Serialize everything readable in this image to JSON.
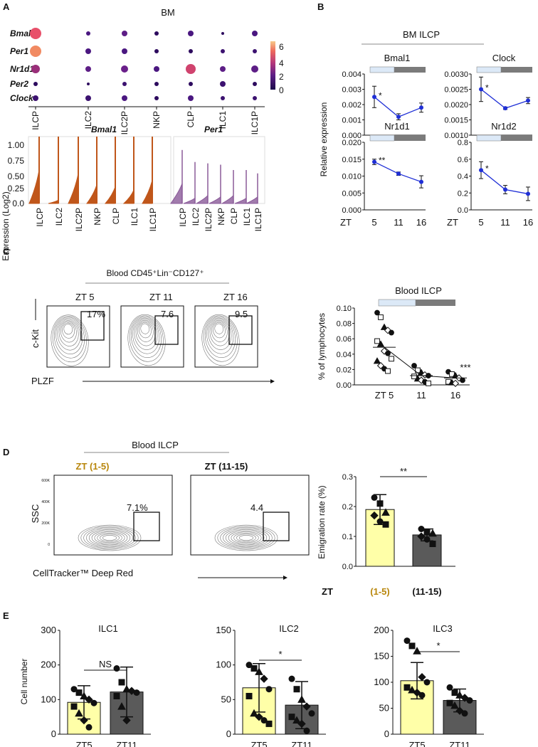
{
  "panel_labels": [
    "A",
    "B",
    "C",
    "D",
    "E"
  ],
  "panelA": {
    "dot_title": "BM",
    "genes": [
      "Bmal1",
      "Per1",
      "Nr1d1",
      "Per2",
      "Clock"
    ],
    "cells": [
      "ILCP",
      "ILC2",
      "ILC2P",
      "NKP",
      "CLP",
      "ILC1",
      "ILC1P"
    ],
    "colorbar_ticks": [
      "6",
      "4",
      "2",
      "0"
    ],
    "violin_ylabel": "Expression (Log2)",
    "violin_titles": [
      "Bmal1",
      "Per1"
    ],
    "violin_yticks": [
      "1.00",
      "0.75",
      "0.50",
      "0.25",
      "0.0"
    ],
    "colors": {
      "bmal1": "#c0561a",
      "per1": "#8a5a99"
    }
  },
  "panelB": {
    "header": "BM ILCP",
    "ylabel": "Relative expression",
    "x_prefix": "ZT",
    "x_ticks": [
      "5",
      "11",
      "16"
    ],
    "subplots": [
      {
        "title": "Bmal1",
        "yticks": [
          "0.004",
          "0.003",
          "0.002",
          "0.001",
          "0.000"
        ],
        "sig": "*"
      },
      {
        "title": "Clock",
        "yticks": [
          "0.0030",
          "0.0025",
          "0.0020",
          "0.0015",
          "0.0010"
        ],
        "sig": "*"
      },
      {
        "title": "Nr1d1",
        "yticks": [
          "0.020",
          "0.015",
          "0.010",
          "0.005",
          "0.000"
        ],
        "sig": "**"
      },
      {
        "title": "Nr1d2",
        "yticks": [
          "0.8",
          "0.6",
          "0.4",
          "0.2",
          "0.0"
        ],
        "sig": "*"
      }
    ],
    "line_color": "#1f2fd6"
  },
  "panelC": {
    "header": "Blood CD45⁺Lin⁻CD127⁺",
    "flow_titles": [
      "ZT 5",
      "ZT 11",
      "ZT 16"
    ],
    "gate_values": [
      "17%",
      "7.6",
      "9.5"
    ],
    "y_axis": "c-Kit",
    "x_axis": "PLZF",
    "scatter_title": "Blood ILCP",
    "scatter_ylabel": "% of lymphocytes",
    "scatter_yticks": [
      "0.10",
      "0.08",
      "0.06",
      "0.04",
      "0.02",
      "0.00"
    ],
    "scatter_xticks": [
      "ZT 5",
      "11",
      "16"
    ],
    "scatter_sig": "***"
  },
  "panelD": {
    "header": "Blood ILCP",
    "flow_titles": [
      "ZT (1-5)",
      "ZT (11-15)"
    ],
    "gate_values": [
      "7.1%",
      "4.4"
    ],
    "y_axis": "SSC",
    "x_axis": "CellTracker™ Deep Red",
    "flow_yticks": [
      "600K",
      "400K",
      "200K",
      "0"
    ],
    "bar_ylabel": "Emigration rate (%)",
    "bar_yticks": [
      "0.3",
      "0.2",
      "0.1",
      "0.0"
    ],
    "bar_x_prefix": "ZT",
    "bar_xticks": [
      "(1-5)",
      "(11-15)"
    ],
    "bar_sig": "**",
    "colors": {
      "early": "#b8860b",
      "bar1": "#ffffa8",
      "bar2": "#5a5a5a"
    }
  },
  "panelE": {
    "ylabel": "Cell number",
    "plots": [
      {
        "title": "ILC1",
        "yticks": [
          "300",
          "200",
          "100",
          "0"
        ],
        "sig": "NS"
      },
      {
        "title": "ILC2",
        "yticks": [
          "150",
          "100",
          "50",
          "0"
        ],
        "sig": "*"
      },
      {
        "title": "ILC3",
        "yticks": [
          "200",
          "150",
          "100",
          "50",
          "0"
        ],
        "sig": "*"
      }
    ],
    "xticks": [
      "ZT5",
      "ZT11"
    ]
  },
  "chart_data": [
    {
      "type": "line",
      "title": "Bmal1",
      "xlabel": "ZT",
      "ylabel": "Relative expression",
      "x": [
        5,
        11,
        16
      ],
      "ylim": [
        0,
        0.004
      ],
      "series": [
        {
          "values": [
            0.0025,
            0.0012,
            0.0018
          ],
          "error": [
            0.0007,
            0.0002,
            0.0003
          ]
        }
      ]
    },
    {
      "type": "line",
      "title": "Clock",
      "xlabel": "ZT",
      "ylabel": "",
      "x": [
        5,
        11,
        16
      ],
      "ylim": [
        0.001,
        0.003
      ],
      "series": [
        {
          "values": [
            0.0025,
            0.00188,
            0.00213
          ],
          "error": [
            0.0004,
            4e-05,
            0.0001
          ]
        }
      ]
    },
    {
      "type": "line",
      "title": "Nr1d1",
      "xlabel": "ZT",
      "ylabel": "Relative expression",
      "x": [
        5,
        11,
        16
      ],
      "ylim": [
        0,
        0.02
      ],
      "series": [
        {
          "values": [
            0.0142,
            0.0107,
            0.0083
          ],
          "error": [
            0.0008,
            0.0005,
            0.0018
          ]
        }
      ]
    },
    {
      "type": "line",
      "title": "Nr1d2",
      "xlabel": "ZT",
      "ylabel": "",
      "x": [
        5,
        11,
        16
      ],
      "ylim": [
        0,
        0.8
      ],
      "series": [
        {
          "values": [
            0.47,
            0.24,
            0.19
          ],
          "error": [
            0.1,
            0.05,
            0.08
          ]
        }
      ]
    },
    {
      "type": "scatter",
      "title": "Blood ILCP",
      "ylabel": "% of lymphocytes",
      "ylim": [
        0,
        0.1
      ],
      "categories": [
        "ZT 5",
        "11",
        "16"
      ],
      "means": [
        0.049,
        0.012,
        0.009
      ],
      "series": [
        {
          "x": "ZT 5",
          "values": [
            0.094,
            0.088,
            0.075,
            0.071,
            0.068,
            0.057,
            0.053,
            0.044,
            0.041,
            0.034,
            0.031,
            0.025,
            0.021,
            0.018
          ]
        },
        {
          "x": "11",
          "values": [
            0.025,
            0.019,
            0.016,
            0.013,
            0.012,
            0.011,
            0.008,
            0.006,
            0.004,
            0.002
          ]
        },
        {
          "x": "16",
          "values": [
            0.017,
            0.014,
            0.012,
            0.009,
            0.006,
            0.004,
            0.003,
            0.002
          ]
        }
      ]
    },
    {
      "type": "bar",
      "title": "",
      "ylabel": "Emigration rate (%)",
      "ylim": [
        0,
        0.3
      ],
      "categories": [
        "(1-5)",
        "(11-15)"
      ],
      "values": [
        0.19,
        0.105
      ],
      "error": [
        0.05,
        0.02
      ],
      "points": [
        [
          0.23,
          0.21,
          0.18,
          0.17,
          0.15,
          0.14
        ],
        [
          0.125,
          0.115,
          0.11,
          0.1,
          0.09,
          0.075
        ]
      ]
    },
    {
      "type": "bar",
      "title": "ILC1",
      "ylabel": "Cell number",
      "ylim": [
        0,
        300
      ],
      "categories": [
        "ZT5",
        "ZT11"
      ],
      "values": [
        92,
        122
      ],
      "error": [
        48,
        72
      ],
      "points": [
        [
          130,
          120,
          110,
          100,
          90,
          80,
          60,
          40,
          20
        ],
        [
          190,
          150,
          130,
          125,
          120,
          110,
          80,
          40
        ]
      ]
    },
    {
      "type": "bar",
      "title": "ILC2",
      "ylabel": "",
      "ylim": [
        0,
        150
      ],
      "categories": [
        "ZT5",
        "ZT11"
      ],
      "values": [
        67,
        42
      ],
      "error": [
        35,
        34
      ],
      "points": [
        [
          100,
          95,
          90,
          80,
          65,
          55,
          30,
          25,
          20,
          15
        ],
        [
          80,
          65,
          50,
          40,
          30,
          25,
          20,
          15,
          5
        ]
      ]
    },
    {
      "type": "bar",
      "title": "ILC3",
      "ylabel": "",
      "ylim": [
        0,
        200
      ],
      "categories": [
        "ZT5",
        "ZT11"
      ],
      "values": [
        103,
        65
      ],
      "error": [
        35,
        22
      ],
      "points": [
        [
          180,
          170,
          160,
          110,
          100,
          90,
          85,
          80,
          75
        ],
        [
          90,
          80,
          75,
          70,
          65,
          60,
          55,
          45,
          40
        ]
      ]
    }
  ]
}
